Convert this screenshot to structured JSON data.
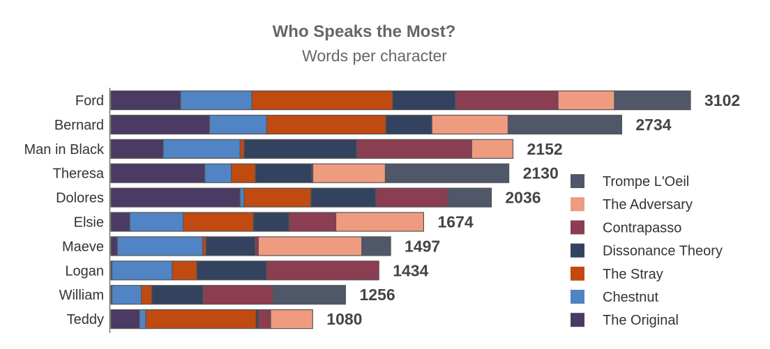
{
  "chart_data": {
    "type": "bar",
    "orientation": "horizontal",
    "stacked": true,
    "title": "Who Speaks the Most?",
    "subtitle": "Words per character",
    "xlabel": "",
    "ylabel": "",
    "xlim": [
      0,
      3102
    ],
    "grid": false,
    "legend_position": "right",
    "categories": [
      "Ford",
      "Bernard",
      "Man in Black",
      "Theresa",
      "Dolores",
      "Elsie",
      "Maeve",
      "Logan",
      "William",
      "Teddy"
    ],
    "totals": [
      3102,
      2734,
      2152,
      2130,
      2036,
      1674,
      1497,
      1434,
      1256,
      1080
    ],
    "series": [
      {
        "name": "The Original",
        "color": "#4b3a63",
        "values": [
          373,
          528,
          280,
          503,
          691,
          101,
          34,
          6,
          6,
          153
        ]
      },
      {
        "name": "Chestnut",
        "color": "#5184c4",
        "values": [
          382,
          306,
          411,
          142,
          22,
          287,
          458,
          322,
          157,
          34
        ]
      },
      {
        "name": "The Stray",
        "color": "#c04a10",
        "values": [
          753,
          638,
          22,
          128,
          358,
          375,
          17,
          132,
          56,
          590
        ]
      },
      {
        "name": "Dissonance Theory",
        "color": "#33425e",
        "values": [
          336,
          246,
          603,
          302,
          347,
          190,
          263,
          373,
          274,
          11
        ]
      },
      {
        "name": "Contrapasso",
        "color": "#8b3d52",
        "values": [
          549,
          0,
          615,
          6,
          386,
          251,
          17,
          601,
          375,
          67
        ]
      },
      {
        "name": "The Adversary",
        "color": "#ef9b80",
        "values": [
          302,
          408,
          221,
          388,
          0,
          470,
          554,
          0,
          0,
          225
        ]
      },
      {
        "name": "Trompe L'Oeil",
        "color": "#4f5768",
        "values": [
          407,
          608,
          0,
          661,
          232,
          0,
          154,
          0,
          388,
          0
        ]
      }
    ]
  }
}
